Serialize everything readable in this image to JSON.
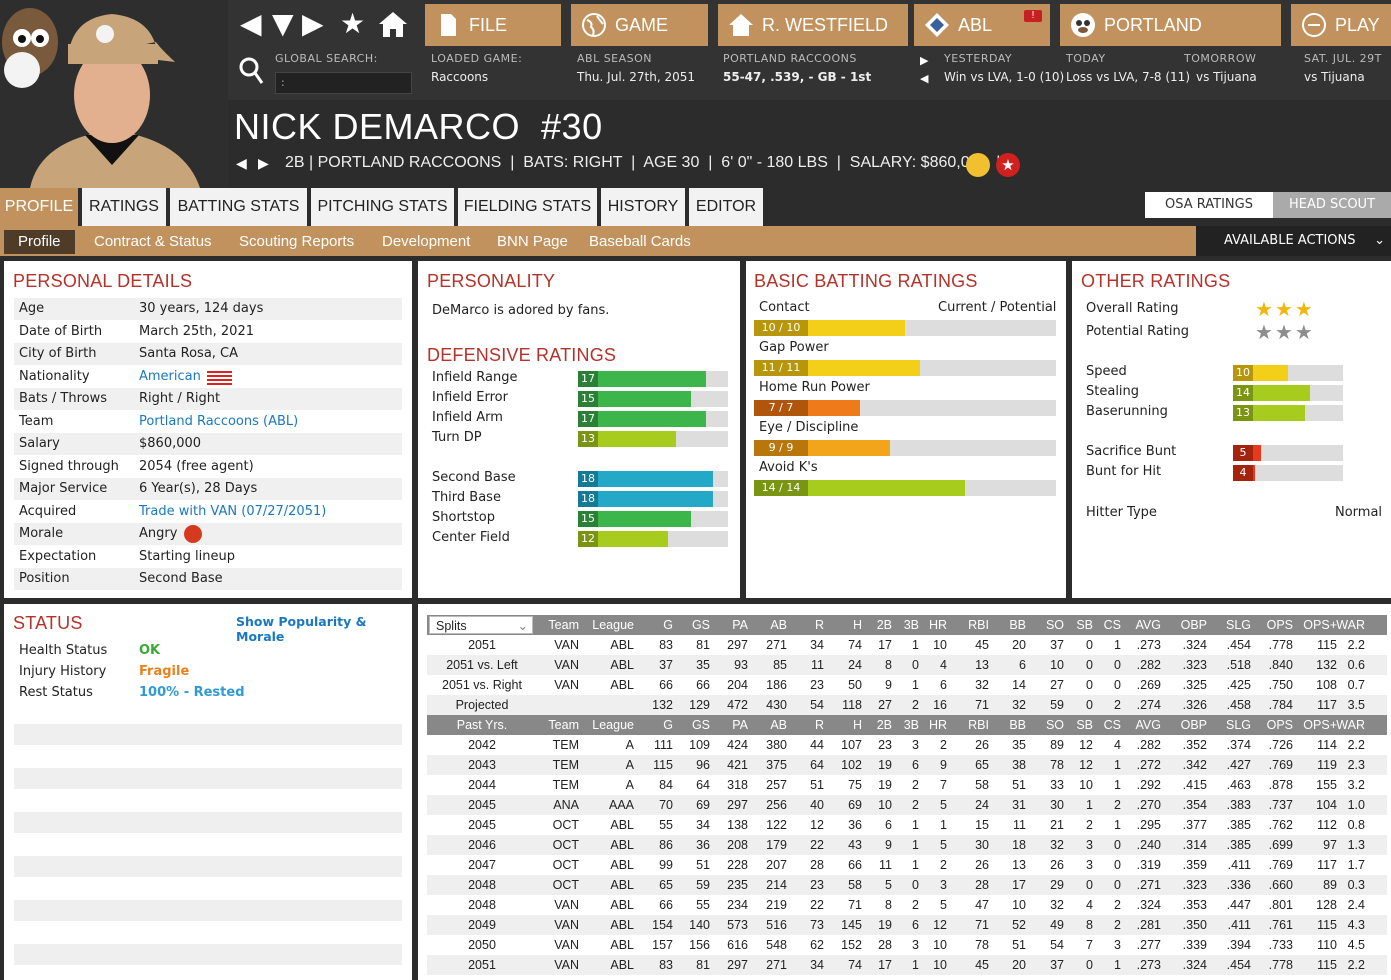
{
  "header": {
    "global_search_label": "GLOBAL SEARCH:",
    "global_search_value": ":",
    "buttons": {
      "file": "FILE",
      "game": "GAME",
      "manager": "R. WESTFIELD",
      "league": "ABL",
      "team": "PORTLAND",
      "play": "PLAY"
    },
    "loaded_game": {
      "label": "LOADED GAME:",
      "value": "Raccoons"
    },
    "season": {
      "label": "ABL SEASON",
      "value": "Thu. Jul. 27th, 2051"
    },
    "team_record": {
      "label": "PORTLAND RACCOONS",
      "value": "55-47, .539, - GB - 1st"
    },
    "yesterday": {
      "label": "YESTERDAY",
      "value": "Win vs LVA, 1-0 (10)"
    },
    "today": {
      "label": "TODAY",
      "value": "Loss vs LVA, 7-8 (11)"
    },
    "tomorrow": {
      "label": "TOMORROW",
      "value": "vs Tijuana"
    },
    "next": {
      "label": "SAT. JUL. 29T",
      "value": "vs Tijuana"
    }
  },
  "player": {
    "name": "NICK DEMARCO  #30",
    "subline": "2B | PORTLAND RACCOONS  |  BATS: RIGHT  |  AGE 30  |  6' 0\" - 180 LBS  |  SALARY: $860,000  |"
  },
  "tabs": [
    "PROFILE",
    "RATINGS",
    "BATTING STATS",
    "PITCHING STATS",
    "FIELDING STATS",
    "HISTORY",
    "EDITOR"
  ],
  "subtabs": [
    "Profile",
    "Contract & Status",
    "Scouting Reports",
    "Development",
    "BNN Page",
    "Baseball Cards"
  ],
  "available_actions": "AVAILABLE ACTIONS",
  "osa_toggle": {
    "osa": "OSA RATINGS",
    "scout": "HEAD SCOUT"
  },
  "personal": {
    "title": "PERSONAL DETAILS",
    "rows": [
      {
        "k": "Age",
        "v": "30 years, 124 days"
      },
      {
        "k": "Date of Birth",
        "v": "March 25th, 2021"
      },
      {
        "k": "City of Birth",
        "v": "Santa Rosa, CA"
      },
      {
        "k": "Nationality",
        "v": "American"
      },
      {
        "k": "Bats / Throws",
        "v": "Right / Right"
      },
      {
        "k": "Team",
        "v": "Portland Raccoons (ABL)"
      },
      {
        "k": "Salary",
        "v": "$860,000"
      },
      {
        "k": "Signed through",
        "v": "2054 (free agent)"
      },
      {
        "k": "Major Service",
        "v": "6 Year(s), 28 Days"
      },
      {
        "k": "Acquired",
        "v": "Trade with VAN (07/27/2051)"
      },
      {
        "k": "Morale",
        "v": "Angry"
      },
      {
        "k": "Expectation",
        "v": "Starting lineup"
      },
      {
        "k": "Position",
        "v": "Second Base"
      }
    ]
  },
  "personality": {
    "title": "PERSONALITY",
    "text": "DeMarco is adored by fans."
  },
  "defensive": {
    "title": "DEFENSIVE RATINGS",
    "group1": [
      {
        "k": "Infield Range",
        "v": "17"
      },
      {
        "k": "Infield Error",
        "v": "15"
      },
      {
        "k": "Infield Arm",
        "v": "17"
      },
      {
        "k": "Turn DP",
        "v": "13"
      }
    ],
    "group2": [
      {
        "k": "Second Base",
        "v": "18"
      },
      {
        "k": "Third Base",
        "v": "18"
      },
      {
        "k": "Shortstop",
        "v": "15"
      },
      {
        "k": "Center Field",
        "v": "12"
      }
    ]
  },
  "batting": {
    "title": "BASIC BATTING RATINGS",
    "cp_label": "Current / Potential",
    "rows": [
      {
        "k": "Contact",
        "v": "10 / 10",
        "cur": 10
      },
      {
        "k": "Gap Power",
        "v": "11 / 11",
        "cur": 11
      },
      {
        "k": "Home Run Power",
        "v": "7 / 7",
        "cur": 7
      },
      {
        "k": "Eye / Discipline",
        "v": "9 / 9",
        "cur": 9
      },
      {
        "k": "Avoid K's",
        "v": "14 / 14",
        "cur": 14
      }
    ]
  },
  "other": {
    "title": "OTHER RATINGS",
    "overall_label": "Overall Rating",
    "overall_stars": 3,
    "potential_label": "Potential Rating",
    "potential_stars": 3,
    "running": [
      {
        "k": "Speed",
        "v": "10"
      },
      {
        "k": "Stealing",
        "v": "14"
      },
      {
        "k": "Baserunning",
        "v": "13"
      }
    ],
    "bunt": [
      {
        "k": "Sacrifice Bunt",
        "v": "5"
      },
      {
        "k": "Bunt for Hit",
        "v": "4"
      }
    ],
    "hitter_type_label": "Hitter Type",
    "hitter_type": "Normal"
  },
  "status": {
    "title": "STATUS",
    "link": "Show Popularity & Morale",
    "rows": [
      {
        "k": "Health Status",
        "v": "OK",
        "color": "#3aaa35"
      },
      {
        "k": "Injury History",
        "v": "Fragile",
        "color": "#e8821e"
      },
      {
        "k": "Rest Status",
        "v": "100% - Rested",
        "color": "#2f9bd6"
      }
    ]
  },
  "splits": {
    "select": "Splits",
    "headers": [
      "Team",
      "League",
      "G",
      "GS",
      "PA",
      "AB",
      "R",
      "H",
      "2B",
      "3B",
      "HR",
      "RBI",
      "BB",
      "SO",
      "SB",
      "CS",
      "AVG",
      "OBP",
      "SLG",
      "OPS",
      "OPS+",
      "WAR"
    ],
    "rows": [
      [
        "2051",
        "VAN",
        "ABL",
        "83",
        "81",
        "297",
        "271",
        "34",
        "74",
        "17",
        "1",
        "10",
        "45",
        "20",
        "37",
        "0",
        "1",
        ".273",
        ".324",
        ".454",
        ".778",
        "115",
        "2.2"
      ],
      [
        "2051 vs. Left",
        "VAN",
        "ABL",
        "37",
        "35",
        "93",
        "85",
        "11",
        "24",
        "8",
        "0",
        "4",
        "13",
        "6",
        "10",
        "0",
        "0",
        ".282",
        ".323",
        ".518",
        ".840",
        "132",
        "0.6"
      ],
      [
        "2051 vs. Right",
        "VAN",
        "ABL",
        "66",
        "66",
        "204",
        "186",
        "23",
        "50",
        "9",
        "1",
        "6",
        "32",
        "14",
        "27",
        "0",
        "0",
        ".269",
        ".325",
        ".425",
        ".750",
        "108",
        "0.7"
      ],
      [
        "Projected",
        "",
        "",
        "132",
        "129",
        "472",
        "430",
        "54",
        "118",
        "27",
        "2",
        "16",
        "71",
        "32",
        "59",
        "0",
        "2",
        ".274",
        ".326",
        ".458",
        ".784",
        "117",
        "3.5"
      ]
    ],
    "past_label": "Past Yrs.",
    "past": [
      [
        "2042",
        "TEM",
        "A",
        "111",
        "109",
        "424",
        "380",
        "44",
        "107",
        "23",
        "3",
        "2",
        "26",
        "35",
        "89",
        "12",
        "4",
        ".282",
        ".352",
        ".374",
        ".726",
        "114",
        "2.2"
      ],
      [
        "2043",
        "TEM",
        "A",
        "115",
        "96",
        "421",
        "375",
        "64",
        "102",
        "19",
        "6",
        "9",
        "65",
        "38",
        "78",
        "12",
        "1",
        ".272",
        ".342",
        ".427",
        ".769",
        "119",
        "2.3"
      ],
      [
        "2044",
        "TEM",
        "A",
        "84",
        "64",
        "318",
        "257",
        "51",
        "75",
        "19",
        "2",
        "7",
        "58",
        "51",
        "33",
        "10",
        "1",
        ".292",
        ".415",
        ".463",
        ".878",
        "155",
        "3.2"
      ],
      [
        "2045",
        "ANA",
        "AAA",
        "70",
        "69",
        "297",
        "256",
        "40",
        "69",
        "10",
        "2",
        "5",
        "24",
        "31",
        "30",
        "1",
        "2",
        ".270",
        ".354",
        ".383",
        ".737",
        "104",
        "1.0"
      ],
      [
        "2045",
        "OCT",
        "ABL",
        "55",
        "34",
        "138",
        "122",
        "12",
        "36",
        "6",
        "1",
        "1",
        "15",
        "11",
        "21",
        "2",
        "1",
        ".295",
        ".377",
        ".385",
        ".762",
        "112",
        "0.8"
      ],
      [
        "2046",
        "OCT",
        "ABL",
        "86",
        "36",
        "208",
        "179",
        "22",
        "43",
        "9",
        "1",
        "5",
        "30",
        "18",
        "32",
        "3",
        "0",
        ".240",
        ".314",
        ".385",
        ".699",
        "97",
        "1.3"
      ],
      [
        "2047",
        "OCT",
        "ABL",
        "99",
        "51",
        "228",
        "207",
        "28",
        "66",
        "11",
        "1",
        "2",
        "26",
        "13",
        "26",
        "3",
        "0",
        ".319",
        ".359",
        ".411",
        ".769",
        "117",
        "1.7"
      ],
      [
        "2048",
        "OCT",
        "ABL",
        "65",
        "59",
        "235",
        "214",
        "23",
        "58",
        "5",
        "0",
        "3",
        "28",
        "17",
        "29",
        "0",
        "0",
        ".271",
        ".323",
        ".336",
        ".660",
        "89",
        "0.3"
      ],
      [
        "2048",
        "VAN",
        "ABL",
        "66",
        "55",
        "234",
        "219",
        "22",
        "71",
        "8",
        "2",
        "5",
        "47",
        "10",
        "32",
        "4",
        "2",
        ".324",
        ".353",
        ".447",
        ".801",
        "128",
        "2.4"
      ],
      [
        "2049",
        "VAN",
        "ABL",
        "154",
        "140",
        "573",
        "516",
        "73",
        "145",
        "19",
        "6",
        "12",
        "71",
        "52",
        "49",
        "8",
        "2",
        ".281",
        ".350",
        ".411",
        ".761",
        "115",
        "4.3"
      ],
      [
        "2050",
        "VAN",
        "ABL",
        "157",
        "156",
        "616",
        "548",
        "62",
        "152",
        "28",
        "3",
        "10",
        "78",
        "51",
        "54",
        "7",
        "3",
        ".277",
        ".339",
        ".394",
        ".733",
        "110",
        "4.5"
      ],
      [
        "2051",
        "VAN",
        "ABL",
        "83",
        "81",
        "297",
        "271",
        "34",
        "74",
        "17",
        "1",
        "10",
        "45",
        "20",
        "37",
        "0",
        "1",
        ".273",
        ".324",
        ".454",
        ".778",
        "115",
        "2.2"
      ]
    ]
  }
}
